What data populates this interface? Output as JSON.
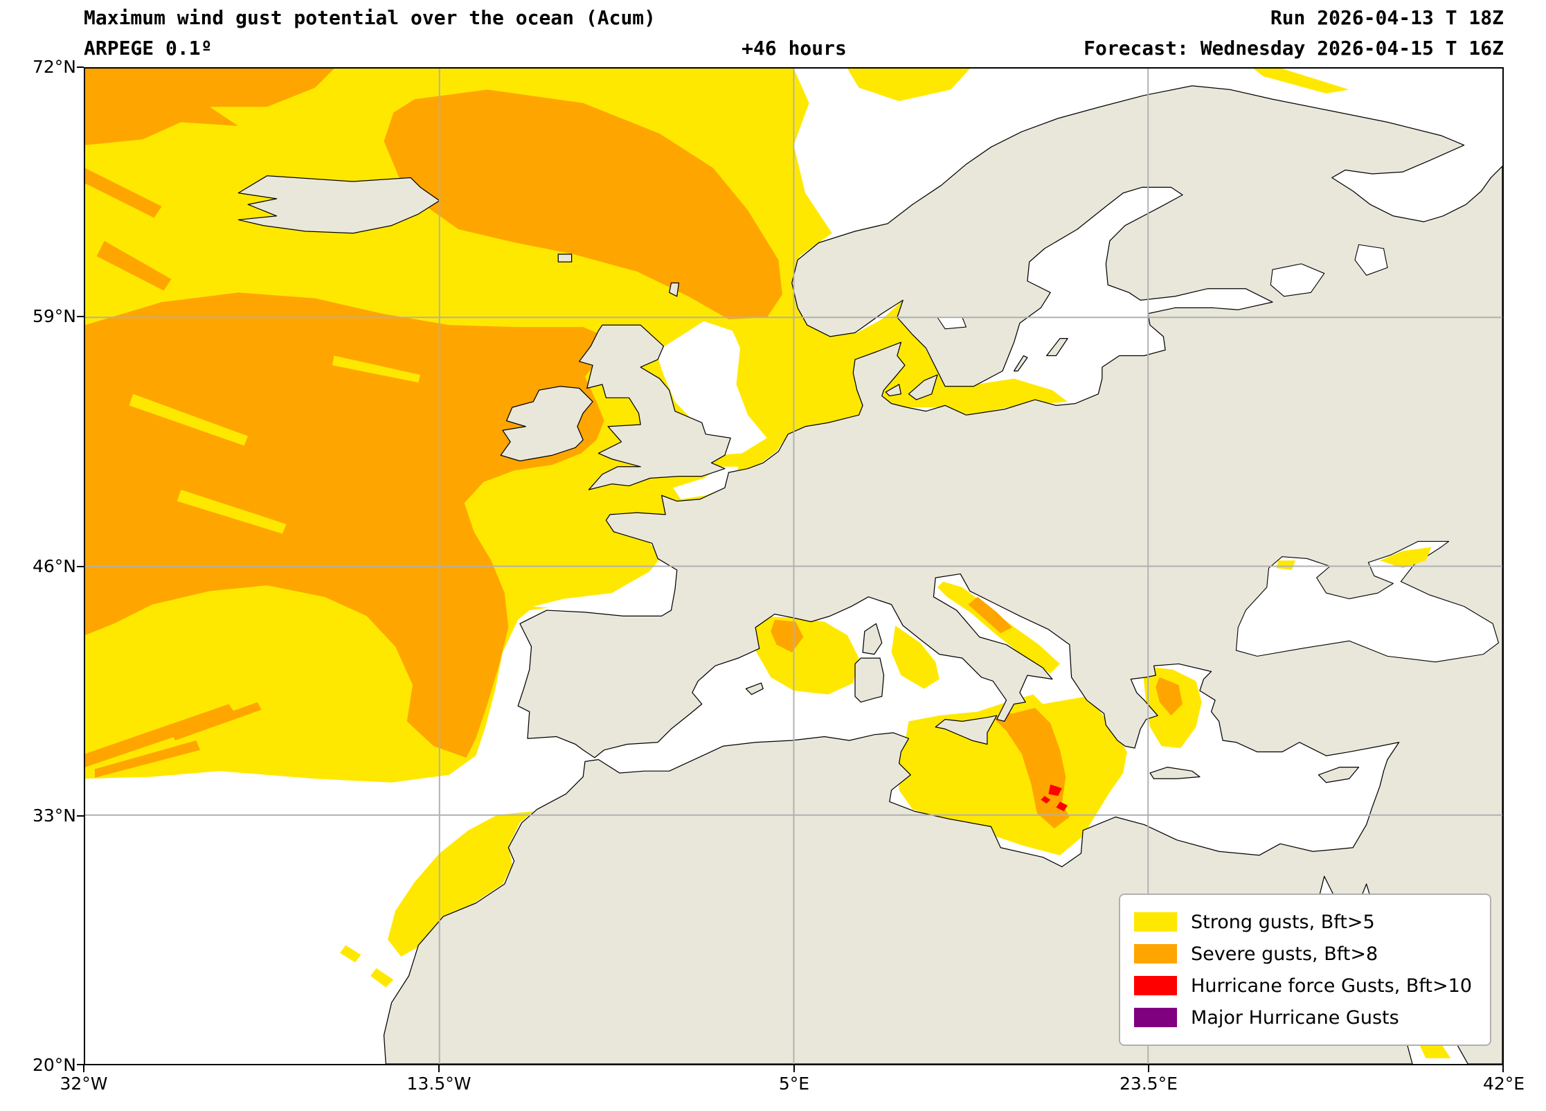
{
  "header": {
    "title": "Maximum wind gust potential over the ocean (Acum)",
    "model": "ARPEGE 0.1º",
    "lead_time": "+46 hours",
    "run": "Run 2026-04-13 T 18Z",
    "forecast": "Forecast: Wednesday 2026-04-15 T 16Z"
  },
  "axes": {
    "y_ticks": [
      "72°N",
      "59°N",
      "46°N",
      "33°N",
      "20°N"
    ],
    "x_ticks": [
      "32°W",
      "13.5°W",
      "5°E",
      "23.5°E",
      "42°E"
    ],
    "lat_range": [
      20,
      72
    ],
    "lon_range": [
      -32,
      42
    ],
    "grid": "on"
  },
  "legend": {
    "items": [
      {
        "label": "Strong gusts, Bft>5",
        "color": "#ffe800"
      },
      {
        "label": "Severe gusts, Bft>8",
        "color": "#ffa500"
      },
      {
        "label": "Hurricane force Gusts, Bft>10",
        "color": "#ff0000"
      },
      {
        "label": "Major Hurricane Gusts",
        "color": "#800080"
      }
    ]
  },
  "colors": {
    "sea": "#ffffff",
    "land": "#e9e7da",
    "coast": "#000000",
    "grid": "#b0b0b0",
    "strong": "#ffe800",
    "severe": "#ffa500",
    "hurricane": "#ff0000",
    "major_hurricane": "#800080"
  }
}
